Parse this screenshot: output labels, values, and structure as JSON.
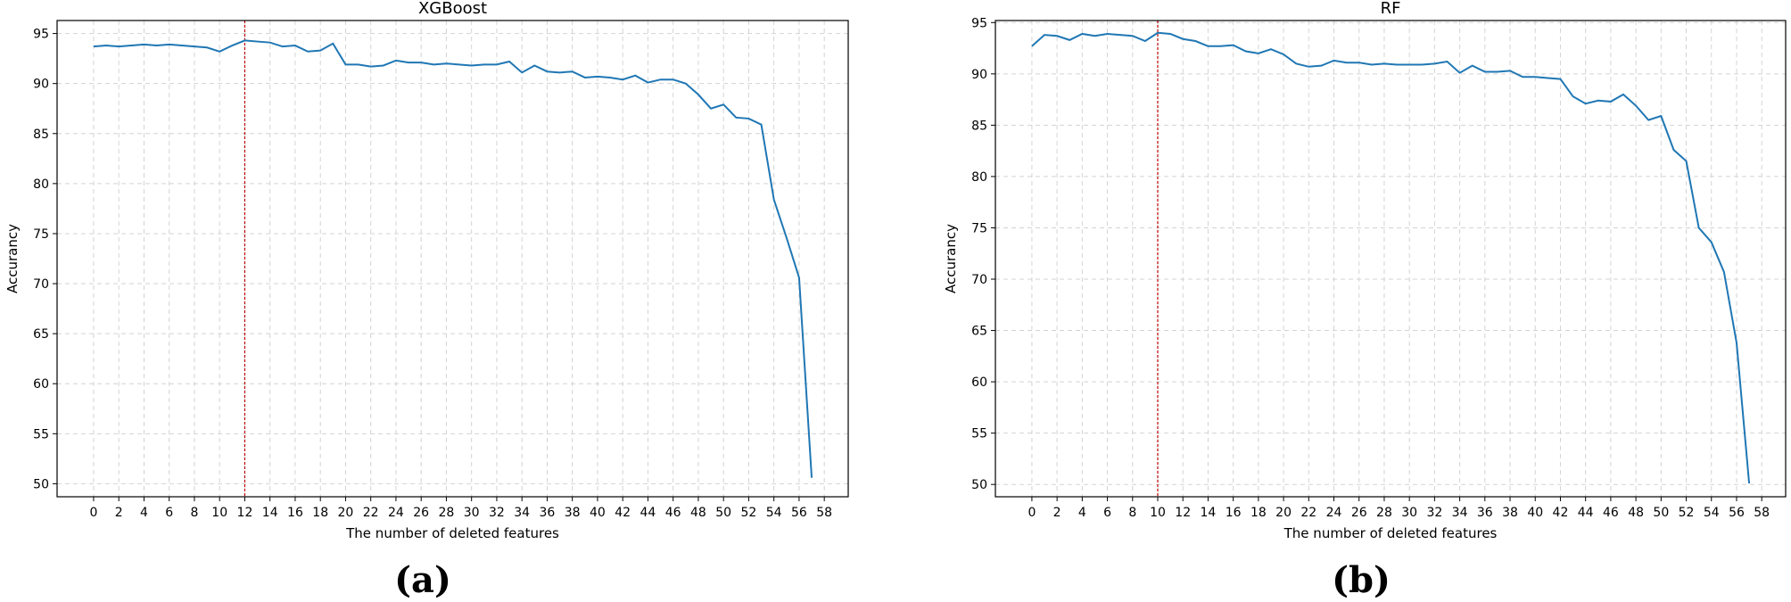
{
  "chart_data": [
    {
      "type": "line",
      "title": "XGBoost",
      "xlabel": "The number of deleted features",
      "ylabel": "Accurancy",
      "panel_label": "(a)",
      "xlim": [
        -2.9,
        59.9
      ],
      "ylim": [
        48.7,
        96.3
      ],
      "xticks": [
        0,
        2,
        4,
        6,
        8,
        10,
        12,
        14,
        16,
        18,
        20,
        22,
        24,
        26,
        28,
        30,
        32,
        34,
        36,
        38,
        40,
        42,
        44,
        46,
        48,
        50,
        52,
        54,
        56,
        58
      ],
      "yticks": [
        50,
        55,
        60,
        65,
        70,
        75,
        80,
        85,
        90,
        95
      ],
      "grid": true,
      "reference_line_x": 12,
      "series": [
        {
          "x": [
            0,
            1,
            2,
            3,
            4,
            5,
            6,
            7,
            8,
            9,
            10,
            11,
            12,
            13,
            14,
            15,
            16,
            17,
            18,
            19,
            20,
            21,
            22,
            23,
            24,
            25,
            26,
            27,
            28,
            29,
            30,
            31,
            32,
            33,
            34,
            35,
            36,
            37,
            38,
            39,
            40,
            41,
            42,
            43,
            44,
            45,
            46,
            47,
            48,
            49,
            50,
            51,
            52,
            53,
            54,
            55,
            56,
            57
          ],
          "y": [
            93.7,
            93.8,
            93.7,
            93.8,
            93.9,
            93.8,
            93.9,
            93.8,
            93.7,
            93.6,
            93.2,
            93.8,
            94.3,
            94.2,
            94.1,
            93.7,
            93.8,
            93.2,
            93.3,
            94.0,
            91.9,
            91.9,
            91.7,
            91.8,
            92.3,
            92.1,
            92.1,
            91.9,
            92.0,
            91.9,
            91.8,
            91.9,
            91.9,
            92.2,
            91.1,
            91.8,
            91.2,
            91.1,
            91.2,
            90.6,
            90.7,
            90.6,
            90.4,
            90.8,
            90.1,
            90.4,
            90.4,
            90.0,
            88.9,
            87.5,
            87.9,
            86.6,
            86.5,
            85.9,
            78.4,
            74.6,
            70.6,
            50.6
          ]
        }
      ]
    },
    {
      "type": "line",
      "title": "RF",
      "xlabel": "The number of deleted features",
      "ylabel": "Accurancy",
      "panel_label": "(b)",
      "xlim": [
        -2.9,
        59.9
      ],
      "ylim": [
        48.8,
        95.2
      ],
      "xticks": [
        0,
        2,
        4,
        6,
        8,
        10,
        12,
        14,
        16,
        18,
        20,
        22,
        24,
        26,
        28,
        30,
        32,
        34,
        36,
        38,
        40,
        42,
        44,
        46,
        48,
        50,
        52,
        54,
        56,
        58
      ],
      "yticks": [
        50,
        55,
        60,
        65,
        70,
        75,
        80,
        85,
        90,
        95
      ],
      "grid": true,
      "reference_line_x": 10,
      "series": [
        {
          "x": [
            0,
            1,
            2,
            3,
            4,
            5,
            6,
            7,
            8,
            9,
            10,
            11,
            12,
            13,
            14,
            15,
            16,
            17,
            18,
            19,
            20,
            21,
            22,
            23,
            24,
            25,
            26,
            27,
            28,
            29,
            30,
            31,
            32,
            33,
            34,
            35,
            36,
            37,
            38,
            39,
            40,
            41,
            42,
            43,
            44,
            45,
            46,
            47,
            48,
            49,
            50,
            51,
            52,
            53,
            54,
            55,
            56,
            57
          ],
          "y": [
            92.7,
            93.8,
            93.7,
            93.3,
            93.9,
            93.7,
            93.9,
            93.8,
            93.7,
            93.2,
            94.0,
            93.9,
            93.4,
            93.2,
            92.7,
            92.7,
            92.8,
            92.2,
            92.0,
            92.4,
            91.9,
            91.0,
            90.7,
            90.8,
            91.3,
            91.1,
            91.1,
            90.9,
            91.0,
            90.9,
            90.9,
            90.9,
            91.0,
            91.2,
            90.1,
            90.8,
            90.2,
            90.2,
            90.3,
            89.7,
            89.7,
            89.6,
            89.5,
            87.8,
            87.1,
            87.4,
            87.3,
            88.0,
            86.9,
            85.5,
            85.9,
            82.6,
            81.5,
            75.0,
            73.6,
            70.7,
            63.8,
            50.1
          ]
        }
      ]
    }
  ]
}
